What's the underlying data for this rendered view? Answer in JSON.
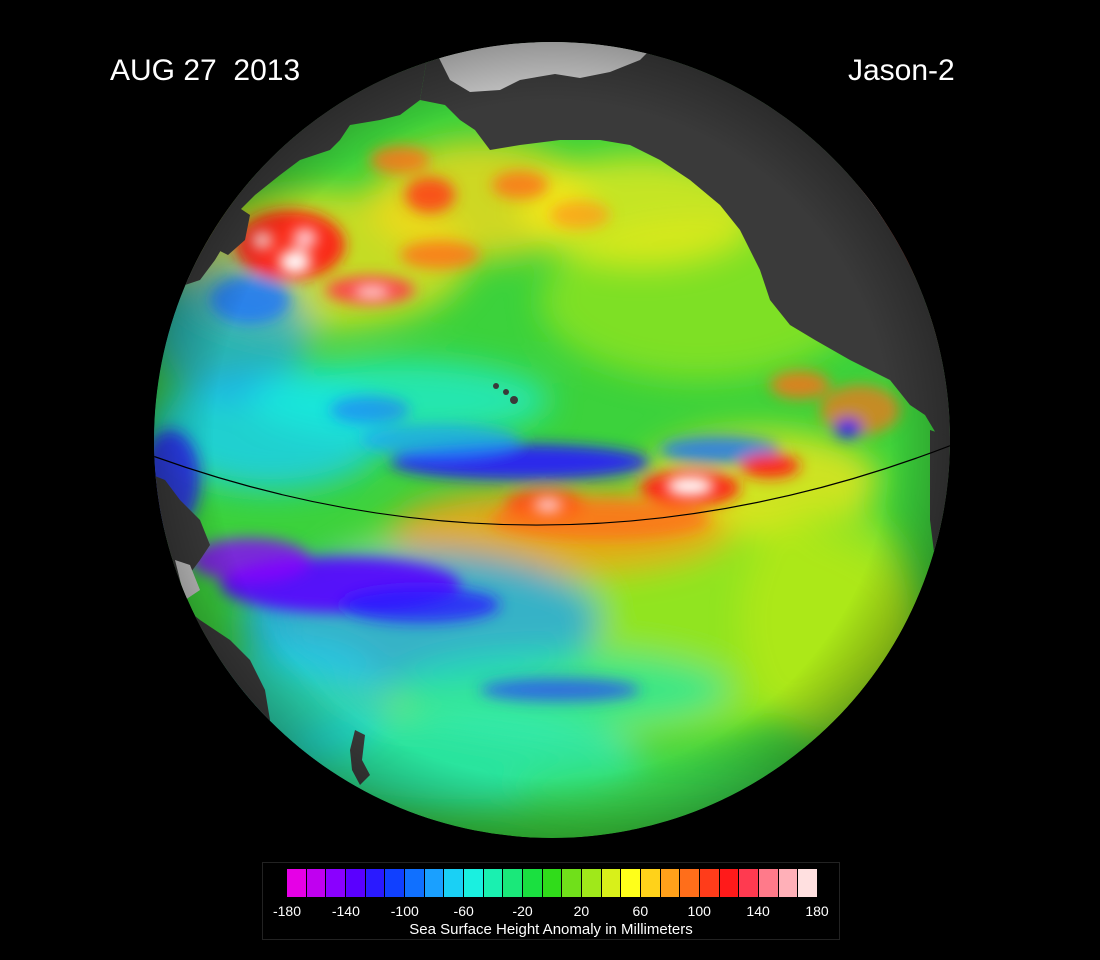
{
  "header": {
    "date": "AUG 27  2013",
    "satellite": "Jason-2"
  },
  "map": {
    "projection": "orthographic globe",
    "region": "Pacific Ocean",
    "equator_line": true,
    "land_color": "#3a3a3a",
    "ice_color": "#c8c8c8",
    "ocean_baseline_color": "#3cd23c"
  },
  "legend": {
    "title": "Sea Surface Height Anomaly in Millimeters",
    "ticks": [
      "-180",
      "-140",
      "-100",
      "-60",
      "-20",
      "20",
      "60",
      "100",
      "140",
      "180"
    ],
    "colors": [
      "#e600e6",
      "#c000f0",
      "#8a00ff",
      "#5a00ff",
      "#2a1aff",
      "#1040ff",
      "#1070ff",
      "#1aa0ff",
      "#1ad0f5",
      "#1af0e0",
      "#1af0b0",
      "#1ae87a",
      "#1ae040",
      "#30dc1a",
      "#70e01a",
      "#a0e81a",
      "#d8f01a",
      "#ffff1a",
      "#ffd21a",
      "#ffa01a",
      "#ff6e1a",
      "#ff3c1a",
      "#ff1a1a",
      "#ff3a50",
      "#ff7a8a",
      "#ffb0b8",
      "#ffe0e0"
    ]
  }
}
